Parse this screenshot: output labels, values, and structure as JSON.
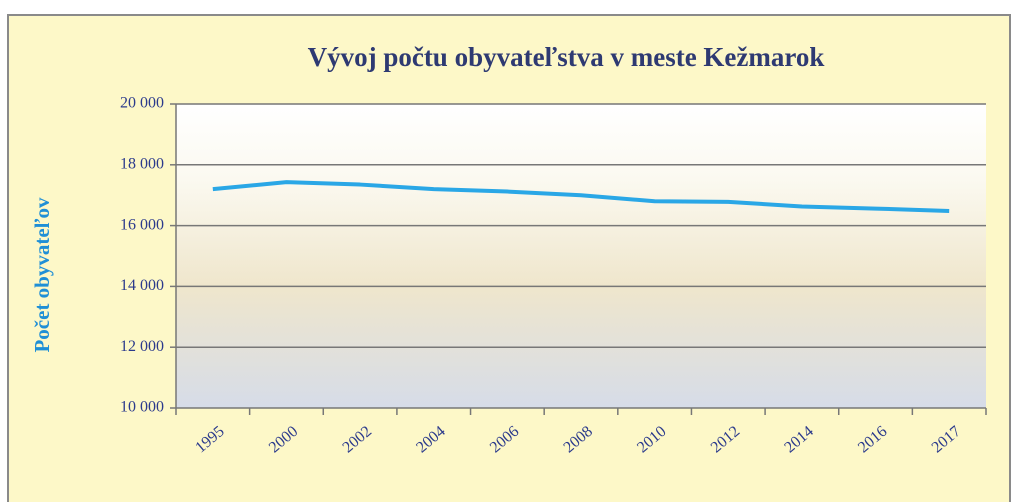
{
  "chart_data": {
    "type": "line",
    "title": "Vývoj počtu obyvateľstva v meste Kežmarok",
    "y_label": "Počet obyvateľov",
    "categories": [
      "1995",
      "2000",
      "2002",
      "2004",
      "2006",
      "2008",
      "2010",
      "2012",
      "2014",
      "2016",
      "2017"
    ],
    "series": [
      {
        "name": "Počet obyvateľov",
        "color": "#2aa7e6",
        "values": [
          17200,
          17430,
          17350,
          17200,
          17120,
          17000,
          16800,
          16780,
          16630,
          16560,
          16480
        ]
      }
    ],
    "ylim": [
      10000,
      20000
    ],
    "yticks": [
      {
        "value": 10000,
        "label": "10 000"
      },
      {
        "value": 12000,
        "label": "12 000"
      },
      {
        "value": 14000,
        "label": "14 000"
      },
      {
        "value": 16000,
        "label": "16 000"
      },
      {
        "value": 18000,
        "label": "18 000"
      },
      {
        "value": 20000,
        "label": "20 000"
      }
    ],
    "grid": true
  }
}
